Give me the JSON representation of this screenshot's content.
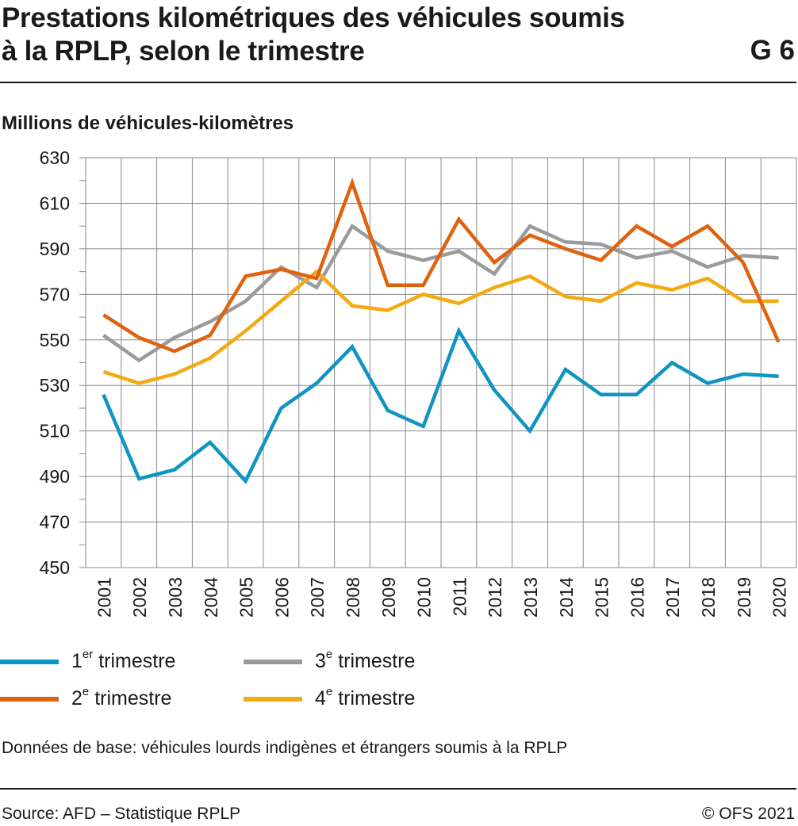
{
  "header": {
    "title_line1": "Prestations kilométriques des véhicules soumis",
    "title_line2": "à la RPLP, selon le trimestre",
    "graphic_number": "G 6"
  },
  "footer": {
    "note": "Données de base: véhicules lourds indigènes et étrangers soumis à la RPLP",
    "source": "Source: AFD – Statistique RPLP",
    "copyright": "© OFS 2021"
  },
  "legend": [
    {
      "num": "1",
      "sup": "er",
      "rest": " trimestre",
      "color": "#0f94c3"
    },
    {
      "num": "2",
      "sup": "e",
      "rest": " trimestre",
      "color": "#e0620e"
    },
    {
      "num": "3",
      "sup": "e",
      "rest": " trimestre",
      "color": "#9b9b9b"
    },
    {
      "num": "4",
      "sup": "e",
      "rest": " trimestre",
      "color": "#f4a911"
    }
  ],
  "chart_data": {
    "type": "line",
    "ylabel": "Millions de véhicules-kilomètres",
    "xlabel": "",
    "ylim": [
      450,
      630
    ],
    "yticks": [
      450,
      470,
      490,
      510,
      530,
      550,
      570,
      590,
      610,
      630
    ],
    "grid": true,
    "legend_position": "bottom",
    "x": [
      "2001",
      "2002",
      "2003",
      "2004",
      "2005",
      "2006",
      "2007",
      "2008",
      "2009",
      "2010",
      "2011",
      "2012",
      "2013",
      "2014",
      "2015",
      "2016",
      "2017",
      "2018",
      "2019",
      "2020"
    ],
    "series": [
      {
        "name": "1er trimestre",
        "color": "#0f94c3",
        "values": [
          526,
          489,
          493,
          505,
          488,
          520,
          531,
          547,
          519,
          512,
          554,
          528,
          510,
          537,
          526,
          526,
          540,
          531,
          535,
          534
        ]
      },
      {
        "name": "2e trimestre",
        "color": "#e0620e",
        "values": [
          561,
          551,
          545,
          552,
          578,
          581,
          577,
          619,
          574,
          574,
          603,
          584,
          596,
          590,
          585,
          600,
          591,
          600,
          584,
          549
        ]
      },
      {
        "name": "3e trimestre",
        "color": "#9b9b9b",
        "values": [
          552,
          541,
          551,
          558,
          567,
          582,
          573,
          600,
          589,
          585,
          589,
          579,
          600,
          593,
          592,
          586,
          589,
          582,
          587,
          586
        ]
      },
      {
        "name": "4e trimestre",
        "color": "#f4a911",
        "values": [
          536,
          531,
          535,
          542,
          554,
          567,
          580,
          565,
          563,
          570,
          566,
          573,
          578,
          569,
          567,
          575,
          572,
          577,
          567,
          567
        ]
      }
    ]
  }
}
